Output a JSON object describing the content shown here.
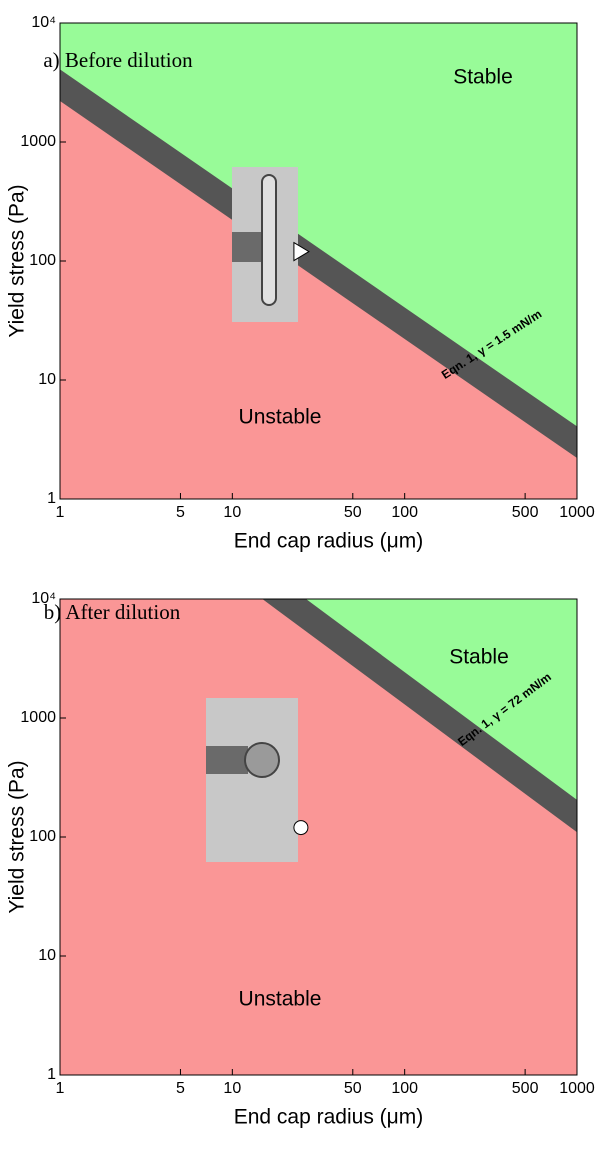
{
  "chart_data": [
    {
      "type": "line",
      "title": "a) Before dilution",
      "xlabel": "End cap radius (μm)",
      "ylabel": "Yield stress (Pa)",
      "log_x": true,
      "log_y": true,
      "xlim": [
        1,
        1000
      ],
      "xticks": [
        1,
        5,
        10,
        50,
        100,
        500,
        1000
      ],
      "ylim": [
        1,
        10000
      ],
      "yticks": [
        1,
        10,
        100,
        1000,
        {
          "value": 10000,
          "label": "10⁴"
        }
      ],
      "stable_label": "Stable",
      "unstable_label": "Unstable",
      "stable_color": "#98fb98",
      "unstable_color": "#fa9696",
      "series": [
        {
          "color": "#555555",
          "x": [
            1,
            1000
          ],
          "values": [
            3000,
            3
          ],
          "label": "Eqn. 1, γ = 1.5 mN/m"
        }
      ],
      "points": [
        {
          "x": 25,
          "y": 120,
          "marker": "triangle"
        }
      ]
    },
    {
      "type": "line",
      "title": "b) After dilution",
      "xlabel": "End cap radius (μm)",
      "ylabel": "Yield stress (Pa)",
      "log_x": true,
      "log_y": true,
      "xlim": [
        1,
        1000
      ],
      "xticks": [
        1,
        5,
        10,
        50,
        100,
        500,
        1000
      ],
      "ylim": [
        1,
        10000
      ],
      "yticks": [
        1,
        10,
        100,
        1000,
        {
          "value": 10000,
          "label": "10⁴"
        }
      ],
      "stable_label": "Stable",
      "unstable_label": "Unstable",
      "stable_color": "#98fb98",
      "unstable_color": "#fa9696",
      "series": [
        {
          "color": "#555555",
          "x": [
            20,
            1000
          ],
          "values": [
            10000,
            150
          ],
          "label": "Eqn. 1, γ = 72 mN/m"
        }
      ],
      "points": [
        {
          "x": 25,
          "y": 120,
          "marker": "circle"
        }
      ]
    }
  ]
}
